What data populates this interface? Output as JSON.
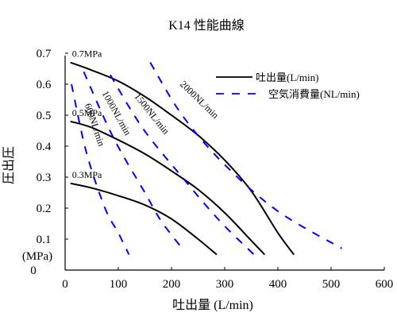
{
  "chart_data": {
    "type": "line",
    "title": "K14 性能曲線",
    "xlabel": "吐出量 (L/min)",
    "ylabel": "圧出圧",
    "yunit": "(MPa)",
    "xlim": [
      0,
      600
    ],
    "ylim": [
      0,
      0.7
    ],
    "x_ticks": [
      "0",
      "100",
      "200",
      "300",
      "400",
      "500",
      "600"
    ],
    "y_ticks": [
      "0",
      "0.1",
      "0.2",
      "0.3",
      "0.4",
      "0.5",
      "0.6",
      "0.7"
    ],
    "legend_position": "top-right",
    "legend": [
      {
        "label": "吐出量(L/min)",
        "style": "solid",
        "color": "#000000"
      },
      {
        "label": "空気消費量(NL/min)",
        "style": "dashed",
        "color": "#0000ff"
      }
    ],
    "series": [
      {
        "name": "0.7MPa",
        "group": "discharge",
        "color": "#000000",
        "dash": false,
        "x": [
          10,
          50,
          100,
          150,
          200,
          250,
          300,
          350,
          400,
          430
        ],
        "y": [
          0.67,
          0.645,
          0.61,
          0.56,
          0.5,
          0.435,
          0.355,
          0.255,
          0.12,
          0.05
        ]
      },
      {
        "name": "0.5MPa",
        "group": "discharge",
        "color": "#000000",
        "dash": false,
        "x": [
          10,
          50,
          100,
          150,
          200,
          250,
          300,
          350,
          375
        ],
        "y": [
          0.48,
          0.46,
          0.42,
          0.375,
          0.32,
          0.26,
          0.185,
          0.095,
          0.05
        ]
      },
      {
        "name": "0.3MPa",
        "group": "discharge",
        "color": "#000000",
        "dash": false,
        "x": [
          10,
          50,
          100,
          150,
          200,
          250,
          285
        ],
        "y": [
          0.28,
          0.265,
          0.24,
          0.21,
          0.165,
          0.1,
          0.05
        ]
      },
      {
        "name": "2000NL/min",
        "group": "air",
        "color": "#0000ff",
        "dash": true,
        "x": [
          160,
          220,
          300,
          400,
          520
        ],
        "y": [
          0.67,
          0.5,
          0.34,
          0.19,
          0.07
        ]
      },
      {
        "name": "1500NL/min",
        "group": "air",
        "color": "#0000ff",
        "dash": true,
        "x": [
          85,
          145,
          220,
          290,
          355
        ],
        "y": [
          0.63,
          0.46,
          0.3,
          0.16,
          0.05
        ]
      },
      {
        "name": "1000NL/min",
        "group": "air",
        "color": "#0000ff",
        "dash": true,
        "x": [
          35,
          90,
          150,
          180,
          220
        ],
        "y": [
          0.64,
          0.43,
          0.25,
          0.16,
          0.07
        ]
      },
      {
        "name": "600NL/min",
        "group": "air",
        "color": "#0000ff",
        "dash": true,
        "x": [
          12,
          40,
          75,
          100,
          120
        ],
        "y": [
          0.6,
          0.38,
          0.2,
          0.12,
          0.05
        ]
      }
    ]
  }
}
